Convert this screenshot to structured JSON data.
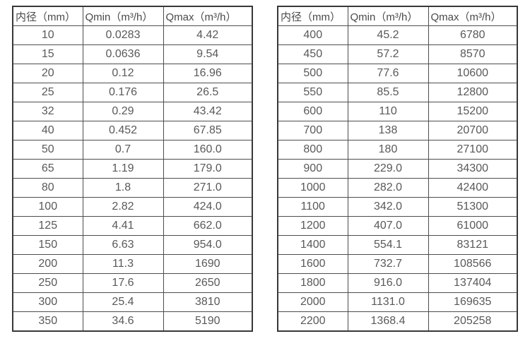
{
  "colors": {
    "background": "#ffffff",
    "outer_border": "#383838",
    "grid_line": "#4d4d4d",
    "header_text": "#4a4a4a",
    "cell_text": "#595959"
  },
  "chart_data": [
    {
      "type": "table",
      "name": "flow-range-table-small-diameters",
      "columns": [
        "内径（mm）",
        "Qmin（m³/h）",
        "Qmax（m³/h）"
      ],
      "rows": [
        [
          "10",
          "0.0283",
          "4.42"
        ],
        [
          "15",
          "0.0636",
          "9.54"
        ],
        [
          "20",
          "0.12",
          "16.96"
        ],
        [
          "25",
          "0.176",
          "26.5"
        ],
        [
          "32",
          "0.29",
          "43.42"
        ],
        [
          "40",
          "0.452",
          "67.85"
        ],
        [
          "50",
          "0.7",
          "160.0"
        ],
        [
          "65",
          "1.19",
          "179.0"
        ],
        [
          "80",
          "1.8",
          "271.0"
        ],
        [
          "100",
          "2.82",
          "424.0"
        ],
        [
          "125",
          "4.41",
          "662.0"
        ],
        [
          "150",
          "6.63",
          "954.0"
        ],
        [
          "200",
          "11.3",
          "1690"
        ],
        [
          "250",
          "17.6",
          "2650"
        ],
        [
          "300",
          "25.4",
          "3810"
        ],
        [
          "350",
          "34.6",
          "5190"
        ]
      ]
    },
    {
      "type": "table",
      "name": "flow-range-table-large-diameters",
      "columns": [
        "内径（mm）",
        "Qmin（m³/h）",
        "Qmax（m³/h）"
      ],
      "rows": [
        [
          "400",
          "45.2",
          "6780"
        ],
        [
          "450",
          "57.2",
          "8570"
        ],
        [
          "500",
          "77.6",
          "10600"
        ],
        [
          "550",
          "85.5",
          "12800"
        ],
        [
          "600",
          "110",
          "15200"
        ],
        [
          "700",
          "138",
          "20700"
        ],
        [
          "800",
          "180",
          "27100"
        ],
        [
          "900",
          "229.0",
          "34300"
        ],
        [
          "1000",
          "282.0",
          "42400"
        ],
        [
          "1100",
          "342.0",
          "51300"
        ],
        [
          "1200",
          "407.0",
          "61000"
        ],
        [
          "1400",
          "554.1",
          "83121"
        ],
        [
          "1600",
          "732.7",
          "108566"
        ],
        [
          "1800",
          "916.0",
          "137404"
        ],
        [
          "2000",
          "1131.0",
          "169635"
        ],
        [
          "2200",
          "1368.4",
          "205258"
        ]
      ]
    }
  ]
}
